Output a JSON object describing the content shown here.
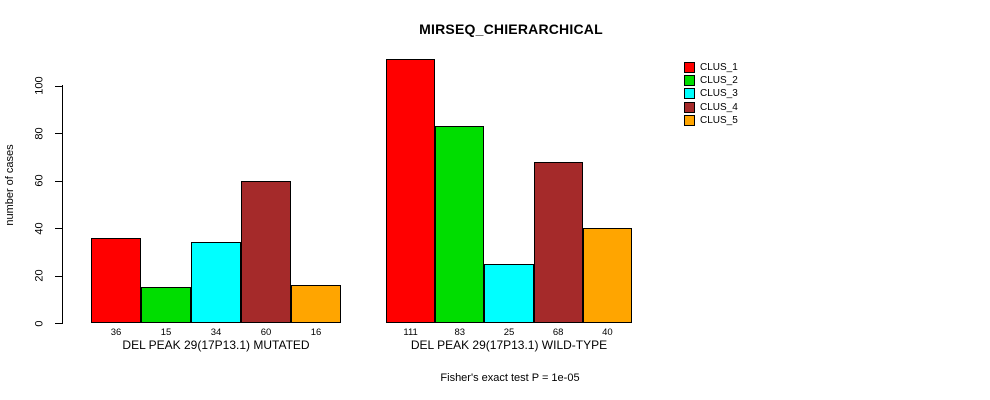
{
  "chart_data": {
    "type": "bar",
    "title": "MIRSEQ_CHIERARCHICAL",
    "ylabel": "number of cases",
    "footnote": "Fisher's exact test P = 1e-05",
    "yticks": [
      0,
      20,
      40,
      60,
      80,
      100
    ],
    "ylim": [
      0,
      115
    ],
    "grid": false,
    "legend_position": "top-right",
    "legend": [
      "CLUS_1",
      "CLUS_2",
      "CLUS_3",
      "CLUS_4",
      "CLUS_5"
    ],
    "colors": [
      "#ff0000",
      "#00dd00",
      "#00ffff",
      "#a52a2a",
      "#ffa500"
    ],
    "groups": [
      {
        "label": "DEL PEAK 29(17P13.1) MUTATED",
        "values": [
          36,
          15,
          34,
          60,
          16
        ]
      },
      {
        "label": "DEL PEAK 29(17P13.1) WILD-TYPE",
        "values": [
          111,
          83,
          25,
          68,
          40
        ]
      }
    ]
  }
}
